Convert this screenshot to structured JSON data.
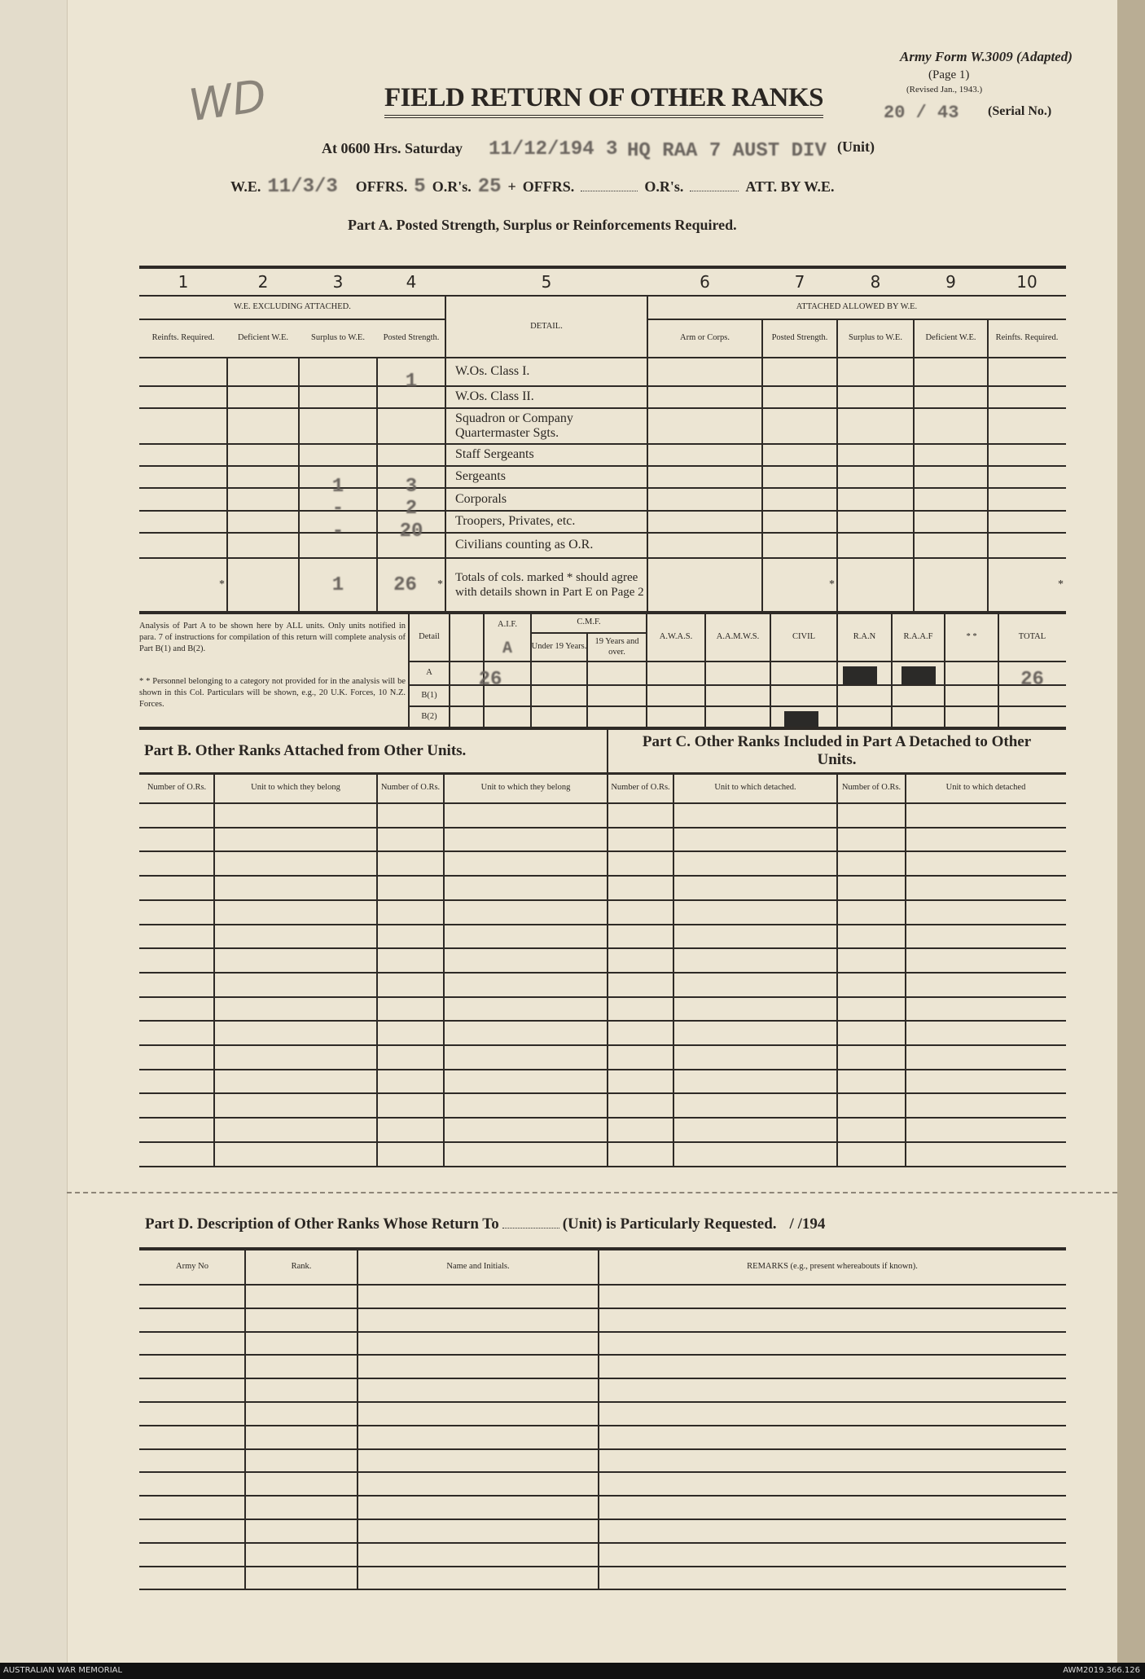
{
  "form": {
    "army_form": "Army Form W.3009 (Adapted)",
    "page": "(Page 1)",
    "revised": "(Revised Jan., 1943.)",
    "serial_value": "20 / 43",
    "serial_label": "(Serial No.)",
    "handwritten_mark": "WD",
    "title": "FIELD RETURN OF OTHER RANKS"
  },
  "header_line": {
    "at_label": "At 0600 Hrs. Saturday",
    "date_value": "11/12/194 3",
    "unit_value": "HQ RAA 7 AUST DIV",
    "unit_label": "(Unit)"
  },
  "we_line": {
    "we_label": "W.E.",
    "we_value": "11/3/3",
    "offrs_label": "OFFRS.",
    "offrs_value": "5",
    "ors_label": "O.R's.",
    "ors_value": "25",
    "plus": "+",
    "offrs2_label": "OFFRS.",
    "ors2_label": "O.R's.",
    "att_label": "ATT. BY W.E."
  },
  "part_a": {
    "heading": "Part A.  Posted Strength, Surplus or Reinforcements Required.",
    "col_numbers": [
      "1",
      "2",
      "3",
      "4",
      "5",
      "6",
      "7",
      "8",
      "9",
      "10"
    ],
    "group_left": "W.E. EXCLUDING ATTACHED.",
    "group_right": "ATTACHED ALLOWED BY W.E.",
    "detail_header": "DETAIL.",
    "sub_headers_left": [
      "Reinfts. Required.",
      "Deficient W.E.",
      "Surplus to W.E.",
      "Posted Strength."
    ],
    "sub_headers_right": [
      "Arm or Corps.",
      "Posted Strength.",
      "Surplus to W.E.",
      "Deficient W.E.",
      "Reinfts. Required."
    ],
    "rows": [
      {
        "detail": "W.Os. Class I.",
        "surplus": "",
        "posted": "1"
      },
      {
        "detail": "W.Os. Class II.",
        "surplus": "",
        "posted": ""
      },
      {
        "detail": "Squadron or Company Quartermaster Sgts.",
        "surplus": "",
        "posted": ""
      },
      {
        "detail": "Staff Sergeants",
        "surplus": "",
        "posted": ""
      },
      {
        "detail": "Sergeants",
        "surplus": "1",
        "posted": "3"
      },
      {
        "detail": "Corporals",
        "surplus": "-",
        "posted": "2"
      },
      {
        "detail": "Troopers, Privates, etc.",
        "surplus": "-",
        "posted": "20"
      },
      {
        "detail": "Civilians counting as O.R.",
        "surplus": "",
        "posted": ""
      }
    ],
    "totals": {
      "detail": "Totals of cols. marked * should agree with details shown in Part E on Page 2",
      "surplus": "1",
      "posted": "26",
      "star": "*"
    }
  },
  "analysis": {
    "note1": "Analysis of Part A to be shown here by ALL units. Only units notified in para. 7 of instructions for compilation of this return will complete analysis of Part B(1) and B(2).",
    "note2": "* * Personnel belonging to a category not provided for in the analysis will be shown in this Col. Particulars will be shown, e.g., 20 U.K. Forces, 10 N.Z. Forces.",
    "detail_label": "Detail",
    "aif": "A.I.F.",
    "aif_mark": "A",
    "cmf": "C.M.F.",
    "under19": "Under 19 Years.",
    "over19": "19 Years and over.",
    "awas": "A.W.A.S.",
    "aamws": "A.A.M.W.S.",
    "civil": "CIVIL",
    "ran": "R.A.N",
    "raaf": "R.A.A.F",
    "other": "* *",
    "total": "TOTAL",
    "row_labels": [
      "A",
      "B(1)",
      "B(2)"
    ],
    "row_a_aif": "26",
    "row_a_total": "26"
  },
  "part_b": {
    "heading": "Part B.  Other Ranks Attached from Other Units.",
    "headers": [
      "Number of O.Rs.",
      "Unit to which they belong",
      "Number of O.Rs.",
      "Unit to which they belong"
    ]
  },
  "part_c": {
    "heading": "Part C.  Other Ranks Included in Part A Detached to Other Units.",
    "headers": [
      "Number of O.Rs.",
      "Unit to which detached.",
      "Number of O.Rs.",
      "Unit to which detached"
    ]
  },
  "part_d": {
    "heading_a": "Part D.  Description of Other Ranks Whose Return To",
    "heading_b": "(Unit) is Particularly Requested.",
    "heading_date": "/      /194",
    "headers": [
      "Army No",
      "Rank.",
      "Name and Initials.",
      "REMARKS (e.g., present whereabouts if known)."
    ]
  },
  "footer": {
    "left": "AUSTRALIAN WAR MEMORIAL",
    "right": "AWM2019.366.126"
  },
  "colors": {
    "paper": "#ece5d3",
    "ink": "#2e2a26",
    "typed": "#6a645e",
    "redaction": "#2b2a28"
  }
}
